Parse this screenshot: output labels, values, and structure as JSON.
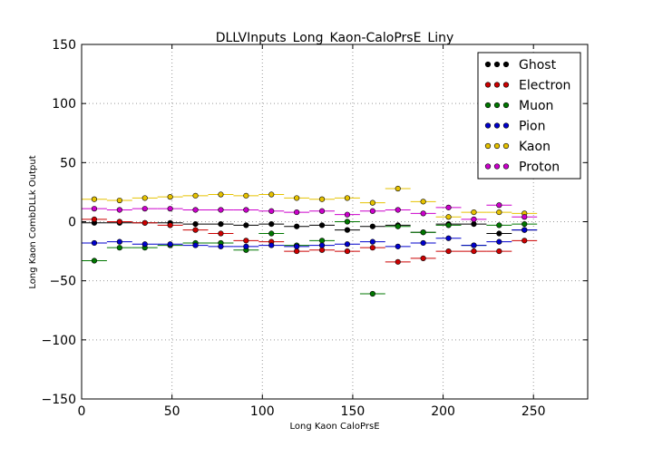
{
  "chart_data": {
    "type": "scatter",
    "title": "DLLVInputs_Long_Kaon-CaloPrsE_Liny",
    "xlabel": "Long Kaon CaloPrsE",
    "ylabel": "Long Kaon CombDLLk Output",
    "xlim": [
      0,
      280
    ],
    "ylim": [
      -150,
      150
    ],
    "xticks": [
      0,
      50,
      100,
      150,
      200,
      250
    ],
    "yticks": [
      -150,
      -100,
      -50,
      0,
      50,
      100,
      150
    ],
    "xtick_labels": [
      "0",
      "50",
      "100",
      "150",
      "200",
      "250"
    ],
    "ytick_labels": [
      "−150",
      "−100",
      "−50",
      "0",
      "50",
      "100",
      "150"
    ],
    "grid": true,
    "legend_position": "top-right",
    "x_bin_half_width": 7,
    "series": [
      {
        "name": "Ghost",
        "color": "#000000",
        "x": [
          7,
          21,
          35,
          49,
          63,
          77,
          91,
          105,
          119,
          133,
          147,
          161,
          175,
          189,
          203,
          217,
          231,
          245
        ],
        "y": [
          -1,
          -1,
          -1,
          -1,
          -2,
          -2,
          -3,
          -2,
          -4,
          -3,
          -7,
          -4,
          -3,
          -9,
          -2,
          -2,
          -10,
          -7
        ]
      },
      {
        "name": "Electron",
        "color": "#cc0000",
        "x": [
          7,
          21,
          35,
          49,
          63,
          77,
          91,
          105,
          119,
          133,
          147,
          161,
          175,
          189,
          203,
          217,
          231,
          245
        ],
        "y": [
          2,
          0,
          -1,
          -3,
          -7,
          -10,
          -16,
          -17,
          -25,
          -24,
          -25,
          -22,
          -34,
          -31,
          -25,
          -25,
          -25,
          -16
        ]
      },
      {
        "name": "Muon",
        "color": "#007700",
        "x": [
          7,
          21,
          35,
          49,
          63,
          77,
          91,
          105,
          119,
          133,
          147,
          161,
          175,
          189,
          203,
          217,
          231,
          245
        ],
        "y": [
          -33,
          -22,
          -22,
          -20,
          -18,
          -18,
          -24,
          -10,
          -20,
          -16,
          0,
          -61,
          -4,
          -9,
          -3,
          -20,
          -3,
          -2
        ]
      },
      {
        "name": "Pion",
        "color": "#0000cc",
        "x": [
          7,
          21,
          35,
          49,
          63,
          77,
          91,
          105,
          119,
          133,
          147,
          161,
          175,
          189,
          203,
          217,
          231,
          245
        ],
        "y": [
          -18,
          -17,
          -19,
          -19,
          -20,
          -21,
          -21,
          -20,
          -21,
          -20,
          -19,
          -17,
          -21,
          -18,
          -14,
          -20,
          -17,
          -7
        ]
      },
      {
        "name": "Kaon",
        "color": "#e6c200",
        "x": [
          7,
          21,
          35,
          49,
          63,
          77,
          91,
          105,
          119,
          133,
          147,
          161,
          175,
          189,
          203,
          217,
          231,
          245
        ],
        "y": [
          19,
          18,
          20,
          21,
          22,
          23,
          22,
          23,
          20,
          19,
          20,
          16,
          28,
          17,
          4,
          8,
          8,
          7
        ]
      },
      {
        "name": "Proton",
        "color": "#cc00cc",
        "x": [
          7,
          21,
          35,
          49,
          63,
          77,
          91,
          105,
          119,
          133,
          147,
          161,
          175,
          189,
          203,
          217,
          231,
          245
        ],
        "y": [
          11,
          10,
          11,
          11,
          10,
          10,
          10,
          9,
          8,
          9,
          6,
          9,
          10,
          7,
          12,
          2,
          14,
          4
        ]
      }
    ]
  }
}
